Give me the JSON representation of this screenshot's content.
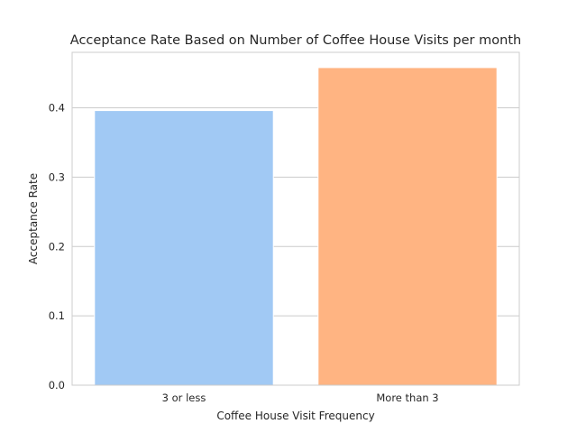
{
  "chart_data": {
    "type": "bar",
    "title": "Acceptance Rate Based on Number of Coffee House Visits per month",
    "xlabel": "Coffee House Visit Frequency",
    "ylabel": "Acceptance Rate",
    "categories": [
      "3 or less",
      "More than 3"
    ],
    "values": [
      0.396,
      0.458
    ],
    "colors": [
      "#a1c9f4",
      "#ffb482"
    ],
    "ylim": [
      0,
      0.48
    ],
    "yticks": [
      0.0,
      0.1,
      0.2,
      0.3,
      0.4
    ],
    "ytick_labels": [
      "0.0",
      "0.1",
      "0.2",
      "0.3",
      "0.4"
    ],
    "grid": true,
    "style": "seaborn whitegrid"
  }
}
